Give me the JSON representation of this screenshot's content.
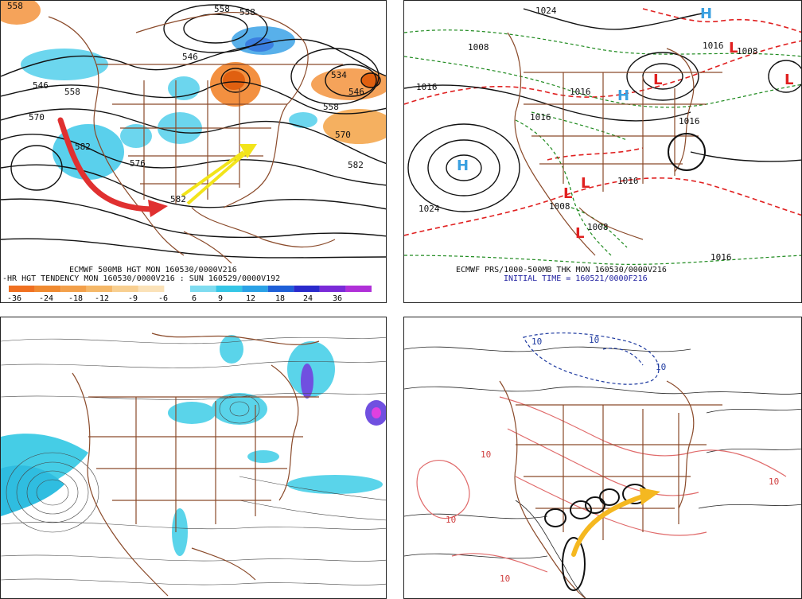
{
  "panels": {
    "top_left": {
      "caption_line1": "ECMWF 500MB HGT MON 160530/0000V216",
      "caption_line2": "-HR HGT TENDENCY MON 160530/0000V216 : SUN 160529/0000V192",
      "contour_labels": [
        "558",
        "546",
        "558",
        "558",
        "546",
        "558",
        "534",
        "546",
        "570",
        "582",
        "576",
        "558",
        "570",
        "582",
        "582"
      ],
      "colorbar": {
        "ticks": [
          "-36",
          "-24",
          "-18",
          "-12",
          "-9",
          "-6",
          "6",
          "9",
          "12",
          "18",
          "24",
          "36"
        ],
        "colors": [
          "#f07020",
          "#f08a30",
          "#f3a04a",
          "#f5b868",
          "#f8cf90",
          "#fbe2b8",
          "#ffffff",
          "#7fdcf0",
          "#35c6e6",
          "#2aa2e6",
          "#1e5fd8",
          "#2a2acc",
          "#7a2ad8",
          "#b030d8"
        ]
      },
      "arrows": {
        "red": "#e03030",
        "yellow": "#f2e41a"
      }
    },
    "top_right": {
      "caption_line1": "ECMWF PRS/1000-500MB THK MON 160530/0000V216",
      "caption_line2": "INITIAL TIME = 160521/0000F216",
      "pressure_labels": [
        "1024",
        "1008",
        "1016",
        "1016",
        "1016",
        "1024",
        "1016",
        "1008",
        "1016",
        "1008",
        "1008",
        "1016",
        "1016"
      ],
      "centers": [
        {
          "type": "H",
          "color": "#3aa0e0"
        },
        {
          "type": "H",
          "color": "#3aa0e0"
        },
        {
          "type": "H",
          "color": "#3aa0e0"
        },
        {
          "type": "L",
          "color": "#e02020"
        },
        {
          "type": "L",
          "color": "#e02020"
        },
        {
          "type": "L",
          "color": "#e02020"
        },
        {
          "type": "L",
          "color": "#e02020"
        },
        {
          "type": "L",
          "color": "#e02020"
        },
        {
          "type": "L",
          "color": "#e02020"
        }
      ]
    },
    "bottom_left": {},
    "bottom_right": {
      "contour_labels": [
        "10",
        "10",
        "10",
        "10",
        "10",
        "10",
        "10"
      ],
      "arrow": {
        "color": "#f5b820"
      }
    }
  }
}
